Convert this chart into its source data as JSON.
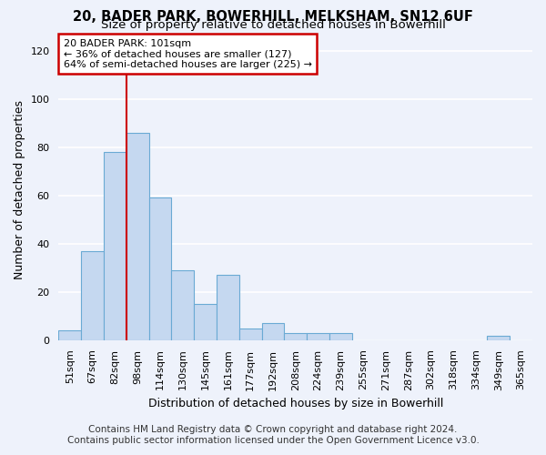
{
  "title1": "20, BADER PARK, BOWERHILL, MELKSHAM, SN12 6UF",
  "title2": "Size of property relative to detached houses in Bowerhill",
  "xlabel": "Distribution of detached houses by size in Bowerhill",
  "ylabel": "Number of detached properties",
  "footnote1": "Contains HM Land Registry data © Crown copyright and database right 2024.",
  "footnote2": "Contains public sector information licensed under the Open Government Licence v3.0.",
  "bar_labels": [
    "51sqm",
    "67sqm",
    "82sqm",
    "98sqm",
    "114sqm",
    "130sqm",
    "145sqm",
    "161sqm",
    "177sqm",
    "192sqm",
    "208sqm",
    "224sqm",
    "239sqm",
    "255sqm",
    "271sqm",
    "287sqm",
    "302sqm",
    "318sqm",
    "334sqm",
    "349sqm",
    "365sqm"
  ],
  "bar_values": [
    4,
    37,
    78,
    86,
    59,
    29,
    15,
    27,
    5,
    7,
    3,
    3,
    3,
    0,
    0,
    0,
    0,
    0,
    0,
    2,
    0
  ],
  "bar_color": "#c5d8f0",
  "bar_edge_color": "#6aaad4",
  "background_color": "#eef2fb",
  "grid_color": "#ffffff",
  "ylim": [
    0,
    125
  ],
  "yticks": [
    0,
    20,
    40,
    60,
    80,
    100,
    120
  ],
  "red_line_bar_index": 3,
  "property_line_label": "20 BADER PARK: 101sqm",
  "annotation_line1": "← 36% of detached houses are smaller (127)",
  "annotation_line2": "64% of semi-detached houses are larger (225) →",
  "annotation_box_color": "#ffffff",
  "annotation_border_color": "#cc0000",
  "red_line_color": "#cc0000",
  "title_fontsize": 10.5,
  "subtitle_fontsize": 9.5,
  "axis_label_fontsize": 9,
  "tick_fontsize": 8,
  "annotation_fontsize": 8,
  "footnote_fontsize": 7.5
}
